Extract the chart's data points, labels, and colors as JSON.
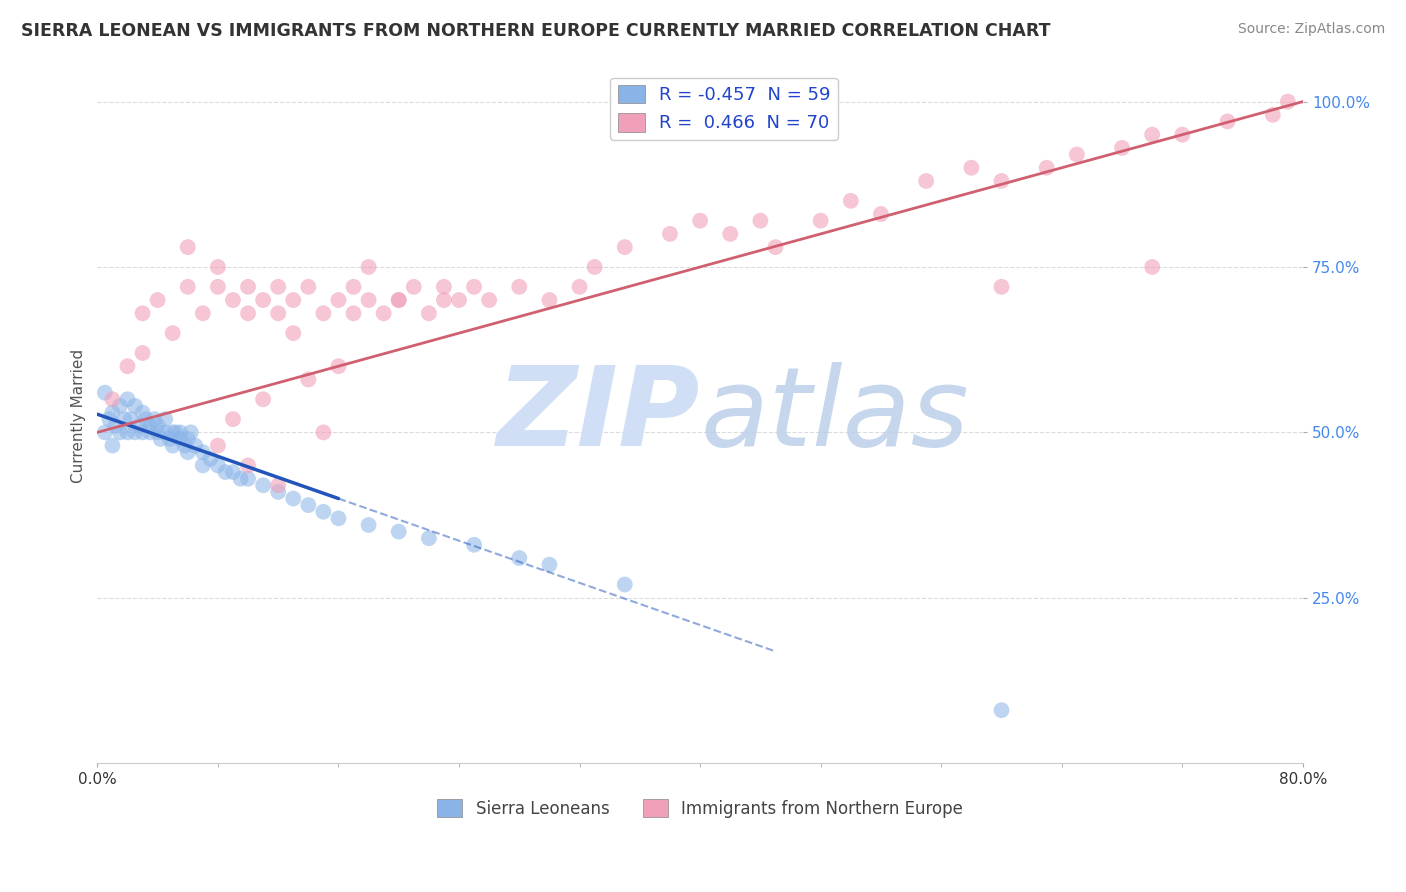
{
  "title": "SIERRA LEONEAN VS IMMIGRANTS FROM NORTHERN EUROPE CURRENTLY MARRIED CORRELATION CHART",
  "source": "Source: ZipAtlas.com",
  "ylabel": "Currently Married",
  "legend_labels_bottom": [
    "Sierra Leoneans",
    "Immigrants from Northern Europe"
  ],
  "sierra_leone_color": "#8ab4e8",
  "northern_europe_color": "#f0a0b8",
  "sierra_leone_trend_color": "#2255bb",
  "northern_europe_trend_color": "#d06070",
  "watermark_zip_color": "#d0dff5",
  "watermark_atlas_color": "#b8cce8",
  "background_color": "#ffffff",
  "grid_color": "#cccccc",
  "xlim": [
    0.0,
    0.8
  ],
  "ylim": [
    0.0,
    1.05
  ],
  "y_tick_vals": [
    0.25,
    0.5,
    0.75,
    1.0
  ],
  "y_tick_labels": [
    "25.0%",
    "50.0%",
    "75.0%",
    "100.0%"
  ],
  "x_tick_vals": [
    0.0,
    0.8
  ],
  "x_tick_labels": [
    "0.0%",
    "80.0%"
  ],
  "legend1_label": "R = -0.457  N = 59",
  "legend2_label": "R =  0.466  N = 70",
  "sl_x": [
    0.005,
    0.008,
    0.01,
    0.01,
    0.012,
    0.015,
    0.015,
    0.018,
    0.02,
    0.02,
    0.022,
    0.025,
    0.025,
    0.028,
    0.03,
    0.03,
    0.032,
    0.035,
    0.035,
    0.038,
    0.04,
    0.04,
    0.042,
    0.045,
    0.045,
    0.048,
    0.05,
    0.05,
    0.052,
    0.055,
    0.055,
    0.058,
    0.06,
    0.06,
    0.062,
    0.065,
    0.07,
    0.07,
    0.075,
    0.08,
    0.085,
    0.09,
    0.095,
    0.1,
    0.11,
    0.12,
    0.13,
    0.14,
    0.15,
    0.16,
    0.18,
    0.2,
    0.22,
    0.25,
    0.28,
    0.3,
    0.35,
    0.6,
    0.005
  ],
  "sl_y": [
    0.5,
    0.52,
    0.48,
    0.53,
    0.51,
    0.5,
    0.54,
    0.52,
    0.5,
    0.55,
    0.52,
    0.5,
    0.54,
    0.51,
    0.5,
    0.53,
    0.52,
    0.51,
    0.5,
    0.52,
    0.5,
    0.51,
    0.49,
    0.5,
    0.52,
    0.49,
    0.5,
    0.48,
    0.5,
    0.49,
    0.5,
    0.48,
    0.49,
    0.47,
    0.5,
    0.48,
    0.47,
    0.45,
    0.46,
    0.45,
    0.44,
    0.44,
    0.43,
    0.43,
    0.42,
    0.41,
    0.4,
    0.39,
    0.38,
    0.37,
    0.36,
    0.35,
    0.34,
    0.33,
    0.31,
    0.3,
    0.27,
    0.08,
    0.56
  ],
  "ne_x": [
    0.01,
    0.02,
    0.03,
    0.03,
    0.04,
    0.05,
    0.06,
    0.06,
    0.07,
    0.08,
    0.08,
    0.09,
    0.1,
    0.1,
    0.11,
    0.12,
    0.12,
    0.13,
    0.14,
    0.15,
    0.16,
    0.17,
    0.18,
    0.18,
    0.19,
    0.2,
    0.21,
    0.22,
    0.23,
    0.24,
    0.25,
    0.26,
    0.28,
    0.3,
    0.32,
    0.33,
    0.35,
    0.38,
    0.4,
    0.42,
    0.44,
    0.45,
    0.48,
    0.5,
    0.52,
    0.55,
    0.58,
    0.6,
    0.63,
    0.65,
    0.68,
    0.7,
    0.72,
    0.75,
    0.78,
    0.79,
    0.13,
    0.17,
    0.2,
    0.23,
    0.1,
    0.15,
    0.12,
    0.08,
    0.09,
    0.11,
    0.14,
    0.16,
    0.6,
    0.7
  ],
  "ne_y": [
    0.55,
    0.6,
    0.62,
    0.68,
    0.7,
    0.65,
    0.72,
    0.78,
    0.68,
    0.72,
    0.75,
    0.7,
    0.68,
    0.72,
    0.7,
    0.72,
    0.68,
    0.7,
    0.72,
    0.68,
    0.7,
    0.72,
    0.7,
    0.75,
    0.68,
    0.7,
    0.72,
    0.68,
    0.7,
    0.7,
    0.72,
    0.7,
    0.72,
    0.7,
    0.72,
    0.75,
    0.78,
    0.8,
    0.82,
    0.8,
    0.82,
    0.78,
    0.82,
    0.85,
    0.83,
    0.88,
    0.9,
    0.88,
    0.9,
    0.92,
    0.93,
    0.95,
    0.95,
    0.97,
    0.98,
    1.0,
    0.65,
    0.68,
    0.7,
    0.72,
    0.45,
    0.5,
    0.42,
    0.48,
    0.52,
    0.55,
    0.58,
    0.6,
    0.72,
    0.75
  ],
  "ne_trend_x0": 0.0,
  "ne_trend_x1": 0.8,
  "ne_trend_y0": 0.5,
  "ne_trend_y1": 1.0,
  "sl_trend_solid_x0": 0.0,
  "sl_trend_solid_x1": 0.16,
  "sl_trend_dashed_x0": 0.16,
  "sl_trend_dashed_x1": 0.45
}
